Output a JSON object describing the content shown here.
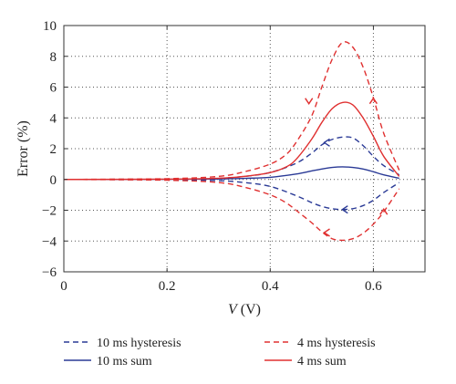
{
  "chart_data": {
    "type": "line",
    "xlabel_var": "V",
    "xlabel_unit": " (V)",
    "ylabel": "Error (%)",
    "xlim": [
      0,
      0.7
    ],
    "ylim": [
      -6,
      10
    ],
    "xticks": [
      "0",
      "0.2",
      "0.4",
      "0.6"
    ],
    "xtick_values": [
      0,
      0.2,
      0.4,
      0.6
    ],
    "yticks": [
      "−6",
      "−4",
      "−2",
      "0",
      "2",
      "4",
      "6",
      "8",
      "10"
    ],
    "ytick_values": [
      -6,
      -4,
      -2,
      0,
      2,
      4,
      6,
      8,
      10
    ],
    "grid": "dotted",
    "legend_position": "below",
    "colors": {
      "red": "#e03030",
      "blue": "#2a3a96"
    },
    "series": [
      {
        "name": "10 ms hysteresis",
        "style": "dashed",
        "color": "blue",
        "x": [
          0,
          0.2,
          0.3,
          0.35,
          0.4,
          0.45,
          0.48,
          0.5,
          0.52,
          0.54,
          0.56,
          0.58,
          0.6,
          0.62,
          0.65
        ],
        "y_upper": [
          0,
          0.02,
          0.08,
          0.2,
          0.45,
          1.05,
          1.7,
          2.25,
          2.6,
          2.75,
          2.7,
          2.2,
          1.5,
          0.9,
          0.3
        ],
        "y_lower": [
          0,
          -0.02,
          -0.08,
          -0.2,
          -0.45,
          -1.05,
          -1.5,
          -1.75,
          -1.9,
          -1.95,
          -1.9,
          -1.7,
          -1.35,
          -0.85,
          -0.2
        ]
      },
      {
        "name": "10 ms sum",
        "style": "solid",
        "color": "blue",
        "x": [
          0,
          0.2,
          0.3,
          0.35,
          0.4,
          0.45,
          0.48,
          0.5,
          0.52,
          0.54,
          0.56,
          0.58,
          0.6,
          0.62,
          0.65
        ],
        "y": [
          0,
          0.01,
          0.03,
          0.07,
          0.14,
          0.35,
          0.55,
          0.68,
          0.78,
          0.82,
          0.78,
          0.68,
          0.5,
          0.3,
          0.08
        ]
      },
      {
        "name": "4 ms hysteresis",
        "style": "dashed",
        "color": "red",
        "x": [
          0,
          0.2,
          0.3,
          0.35,
          0.4,
          0.43,
          0.45,
          0.48,
          0.5,
          0.52,
          0.54,
          0.56,
          0.58,
          0.6,
          0.62,
          0.65
        ],
        "y_upper": [
          0,
          0.05,
          0.2,
          0.5,
          1.0,
          1.6,
          2.4,
          4.1,
          6.0,
          7.8,
          8.9,
          8.6,
          7.3,
          5.3,
          3.0,
          0.6
        ],
        "y_lower": [
          0,
          -0.05,
          -0.2,
          -0.5,
          -1.0,
          -1.5,
          -2.0,
          -2.8,
          -3.4,
          -3.85,
          -3.95,
          -3.85,
          -3.5,
          -2.9,
          -2.1,
          -0.6
        ]
      },
      {
        "name": "4 ms sum",
        "style": "solid",
        "color": "red",
        "x": [
          0,
          0.2,
          0.3,
          0.35,
          0.4,
          0.43,
          0.45,
          0.48,
          0.5,
          0.52,
          0.54,
          0.56,
          0.58,
          0.6,
          0.62,
          0.65
        ],
        "y": [
          0,
          0.02,
          0.08,
          0.2,
          0.45,
          0.8,
          1.3,
          2.6,
          3.7,
          4.6,
          5.0,
          4.85,
          4.0,
          2.8,
          1.5,
          0.2
        ]
      }
    ],
    "arrows": [
      {
        "color": "red",
        "x": 0.475,
        "y": 5.1,
        "dir": "down"
      },
      {
        "color": "red",
        "x": 0.6,
        "y": 5.1,
        "dir": "up"
      },
      {
        "color": "red",
        "x": 0.51,
        "y": -3.45,
        "dir": "left"
      },
      {
        "color": "red",
        "x": 0.62,
        "y": -2.1,
        "dir": "up"
      },
      {
        "color": "blue",
        "x": 0.51,
        "y": 2.4,
        "dir": "left"
      },
      {
        "color": "blue",
        "x": 0.545,
        "y": -1.95,
        "dir": "left"
      }
    ]
  }
}
